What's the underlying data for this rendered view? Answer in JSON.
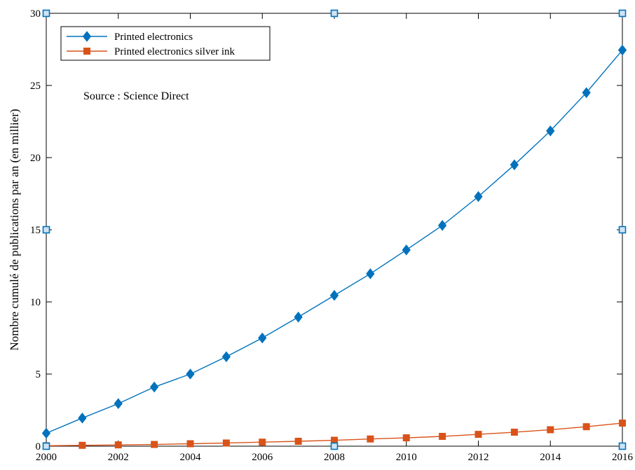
{
  "chart_data": {
    "type": "line",
    "title": "",
    "xlabel": "",
    "ylabel": "Nombre cumulé de publications par an (en millier)",
    "xlim": [
      2000,
      2016
    ],
    "ylim": [
      0,
      30
    ],
    "x_ticks": [
      2000,
      2002,
      2004,
      2006,
      2008,
      2010,
      2012,
      2014,
      2016
    ],
    "x_tick_labels": [
      "2000",
      "2002",
      "2004",
      "2006",
      "2008",
      "2010",
      "2012",
      "2014",
      "2016"
    ],
    "y_ticks": [
      0,
      5,
      10,
      15,
      20,
      25,
      30
    ],
    "y_tick_labels": [
      "0",
      "5",
      "10",
      "15",
      "20",
      "25",
      "30"
    ],
    "grid": false,
    "legend_position": "top-left",
    "annotation": "Source : Science Direct",
    "x": [
      2000,
      2001,
      2002,
      2003,
      2004,
      2005,
      2006,
      2007,
      2008,
      2009,
      2010,
      2011,
      2012,
      2013,
      2014,
      2015,
      2016
    ],
    "series": [
      {
        "name": "Printed electronics",
        "color": "#0072BD",
        "marker": "diamond",
        "values": [
          0.9,
          1.95,
          2.95,
          4.1,
          5.0,
          6.2,
          7.5,
          8.95,
          10.45,
          11.95,
          13.6,
          15.3,
          17.3,
          19.5,
          21.85,
          24.5,
          27.45
        ]
      },
      {
        "name": "Printed electronics silver ink",
        "color": "#D95319",
        "marker": "square",
        "values": [
          0.03,
          0.06,
          0.09,
          0.12,
          0.17,
          0.22,
          0.28,
          0.34,
          0.41,
          0.5,
          0.58,
          0.68,
          0.82,
          0.97,
          1.14,
          1.35,
          1.6
        ]
      }
    ],
    "edge_markers": {
      "color": "#0072BD",
      "marker": "square-open",
      "points": [
        [
          2000,
          30
        ],
        [
          2008,
          30
        ],
        [
          2016,
          30
        ],
        [
          2000,
          15
        ],
        [
          2016,
          15
        ],
        [
          2000,
          0
        ],
        [
          2008,
          0
        ],
        [
          2016,
          0
        ]
      ]
    }
  }
}
